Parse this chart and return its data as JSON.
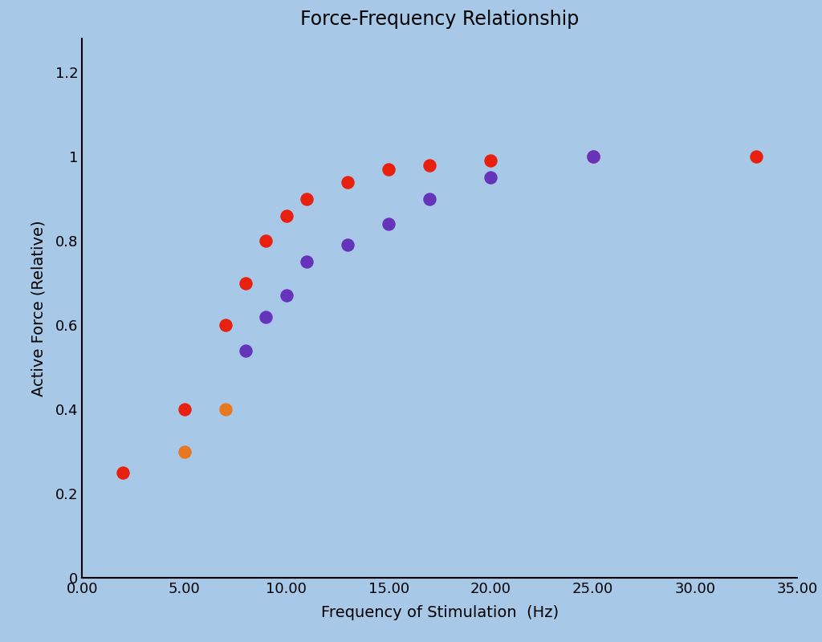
{
  "title": "Force-Frequency Relationship",
  "xlabel": "Frequency of Stimulation  (Hz)",
  "ylabel": "Active Force (Relative)",
  "background_color": "#a8c8e8",
  "xlim": [
    0,
    35
  ],
  "ylim": [
    0,
    1.28
  ],
  "xticks": [
    0.0,
    5.0,
    10.0,
    15.0,
    20.0,
    25.0,
    30.0,
    35.0
  ],
  "yticks": [
    0,
    0.2,
    0.4,
    0.6,
    0.8,
    1.0,
    1.2
  ],
  "ytick_labels": [
    "0",
    "0.2",
    "0.4",
    "0.6",
    "0.8",
    "1",
    "1.2"
  ],
  "xtick_labels": [
    "0.00",
    "5.00",
    "10.00",
    "15.00",
    "20.00",
    "25.00",
    "30.00",
    "35.00"
  ],
  "red_x": [
    2,
    5,
    7,
    8,
    9,
    10,
    11,
    13,
    15,
    17,
    20,
    25,
    33
  ],
  "red_y": [
    0.25,
    0.4,
    0.6,
    0.7,
    0.8,
    0.86,
    0.9,
    0.94,
    0.97,
    0.98,
    0.99,
    1.0,
    1.0
  ],
  "orange_x": [
    5,
    7
  ],
  "orange_y": [
    0.3,
    0.4
  ],
  "purple_x": [
    8,
    9,
    10,
    11,
    13,
    15,
    17,
    20,
    25
  ],
  "purple_y": [
    0.54,
    0.62,
    0.67,
    0.75,
    0.79,
    0.84,
    0.9,
    0.95,
    1.0
  ],
  "red_color": "#e82010",
  "orange_color": "#e87820",
  "purple_color": "#6633bb",
  "marker_size": 140,
  "title_fontsize": 17,
  "label_fontsize": 14,
  "tick_fontsize": 13
}
